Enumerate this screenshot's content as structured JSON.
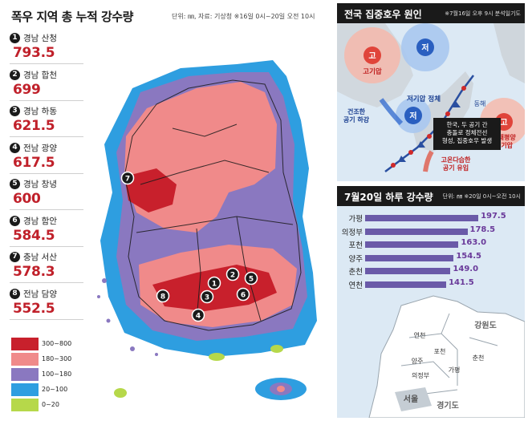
{
  "main": {
    "title": "폭우 지역 총 누적 강수량",
    "note": "단위: ㎜, 자료: 기상청 ※16일 0시~20일 오전 10시",
    "ranks": [
      {
        "n": "1",
        "region": "경남 산청",
        "value": "793.5"
      },
      {
        "n": "2",
        "region": "경남 합천",
        "value": "699"
      },
      {
        "n": "3",
        "region": "경남 하동",
        "value": "621.5"
      },
      {
        "n": "4",
        "region": "전남 광양",
        "value": "617.5"
      },
      {
        "n": "5",
        "region": "경남 창녕",
        "value": "600"
      },
      {
        "n": "6",
        "region": "경남 함안",
        "value": "584.5"
      },
      {
        "n": "7",
        "region": "충남 서산",
        "value": "578.3"
      },
      {
        "n": "8",
        "region": "전남 담양",
        "value": "552.5"
      }
    ],
    "legend": [
      {
        "label": "300~800",
        "color": "#c8202c"
      },
      {
        "label": "180~300",
        "color": "#f08a8a"
      },
      {
        "label": "100~180",
        "color": "#8a78c0"
      },
      {
        "label": "20~100",
        "color": "#2e9ee0"
      },
      {
        "label": "0~20",
        "color": "#b6d84a"
      }
    ],
    "map_markers": [
      "1",
      "2",
      "3",
      "4",
      "5",
      "6",
      "7",
      "8"
    ]
  },
  "cause": {
    "title": "전국 집중호우 원인",
    "note": "※7월16일 오후 9시 분석일기도",
    "high": "고",
    "low": "저",
    "high_label": "고기압",
    "low_stall": "저기압 정체",
    "dry_air": "건조한\n공기 하강",
    "east_sea": "동해",
    "nw_pacific": "북태평양\n고기압",
    "warm_air": "고온다습한\n공기 유입",
    "callout": "한국, 두 공기 간\n충돌로 정체전선\n형성, 집중호우 발생"
  },
  "daily": {
    "title": "7월20일 하루 강수량",
    "note": "단위: ㎜ ※20일 0시~오전 10시",
    "chart_data": {
      "type": "bar",
      "categories": [
        "가평",
        "의정부",
        "포천",
        "양주",
        "춘천",
        "연천"
      ],
      "values": [
        197.5,
        178.5,
        163.0,
        154.5,
        149.0,
        141.5
      ],
      "value_labels": [
        "197.5",
        "178.5",
        "163.0",
        "154.5",
        "149.0",
        "141.5"
      ],
      "title": "7월20일 하루 강수량",
      "xlabel": "",
      "ylabel": "",
      "xlim": [
        0,
        210
      ]
    },
    "map_labels": {
      "gangwon": "강원도",
      "seoul": "서울",
      "gyeonggi": "경기도",
      "yeoncheon": "연천",
      "pocheon": "포천",
      "yangju": "양주",
      "uijeongbu": "의정부",
      "gapyeong": "가평",
      "chuncheon": "춘천"
    }
  }
}
